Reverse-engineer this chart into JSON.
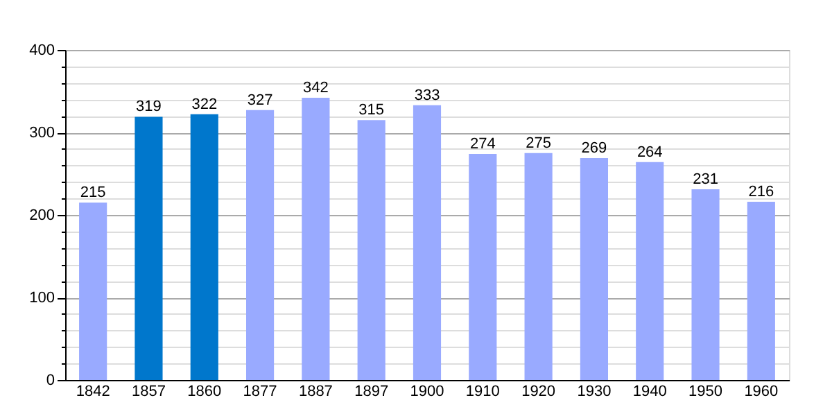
{
  "chart_data": {
    "type": "bar",
    "categories": [
      "1842",
      "1857",
      "1860",
      "1877",
      "1887",
      "1897",
      "1900",
      "1910",
      "1920",
      "1930",
      "1940",
      "1950",
      "1960"
    ],
    "values": [
      215,
      319,
      322,
      327,
      342,
      315,
      333,
      274,
      275,
      269,
      264,
      231,
      216
    ],
    "colors": [
      "#99aaff",
      "#0077cc",
      "#0077cc",
      "#99aaff",
      "#99aaff",
      "#99aaff",
      "#99aaff",
      "#99aaff",
      "#99aaff",
      "#99aaff",
      "#99aaff",
      "#99aaff",
      "#99aaff"
    ],
    "ylim": [
      0,
      400
    ],
    "yticks": [
      0,
      {
        "value": 20,
        "label": null
      },
      {
        "value": 40,
        "label": null
      },
      {
        "value": 60,
        "label": null
      },
      {
        "value": 80,
        "label": null
      },
      100,
      {
        "value": 120,
        "label": null
      },
      {
        "value": 140,
        "label": null
      },
      {
        "value": 160,
        "label": null
      },
      {
        "value": 180,
        "label": null
      },
      200,
      {
        "value": 220,
        "label": null
      },
      {
        "value": 240,
        "label": null
      },
      {
        "value": 260,
        "label": null
      },
      {
        "value": 280,
        "label": null
      },
      300,
      {
        "value": 320,
        "label": null
      },
      {
        "value": 340,
        "label": null
      },
      {
        "value": 360,
        "label": null
      },
      {
        "value": 380,
        "label": null
      },
      400
    ],
    "grid": "y",
    "data_labels": true
  }
}
